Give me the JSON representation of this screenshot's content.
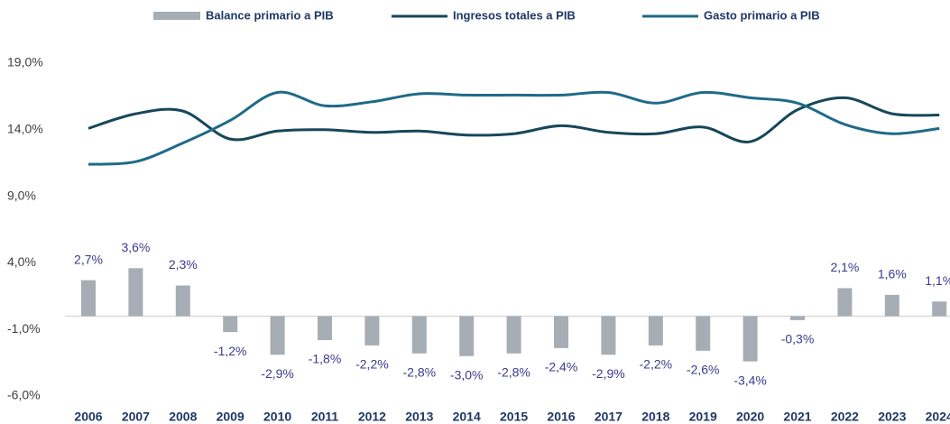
{
  "chart_data": {
    "type": "bar_line",
    "categories": [
      "2006",
      "2007",
      "2008",
      "2009",
      "2010",
      "2011",
      "2012",
      "2013",
      "2014",
      "2015",
      "2016",
      "2017",
      "2018",
      "2019",
      "2020",
      "2021",
      "2022",
      "2023",
      "2024"
    ],
    "series": [
      {
        "name": "Balance primario a PIB",
        "type": "bar",
        "color": "#a6adb4",
        "values": [
          2.7,
          3.6,
          2.3,
          -1.2,
          -2.9,
          -1.8,
          -2.2,
          -2.8,
          -3.0,
          -2.8,
          -2.4,
          -2.9,
          -2.2,
          -2.6,
          -3.4,
          -0.3,
          2.1,
          1.6,
          1.1
        ],
        "value_labels": [
          "2,7%",
          "3,6%",
          "2,3%",
          "-1,2%",
          "-2,9%",
          "-1,8%",
          "-2,2%",
          "-2,8%",
          "-3,0%",
          "-2,8%",
          "-2,4%",
          "-2,9%",
          "-2,2%",
          "-2,6%",
          "-3,4%",
          "-0,3%",
          "2,1%",
          "1,6%",
          "1,1%"
        ]
      },
      {
        "name": "Ingresos totales a PIB",
        "type": "line",
        "color": "#17475a",
        "values": [
          14.1,
          15.2,
          15.4,
          13.3,
          13.9,
          14.0,
          13.8,
          13.9,
          13.6,
          13.7,
          14.3,
          13.8,
          13.7,
          14.2,
          13.1,
          15.5,
          16.4,
          15.2,
          15.1
        ]
      },
      {
        "name": "Gasto primario a PIB",
        "type": "line",
        "color": "#1f6a88",
        "values": [
          11.4,
          11.6,
          13.0,
          14.7,
          16.8,
          15.8,
          16.1,
          16.7,
          16.6,
          16.6,
          16.6,
          16.8,
          16.0,
          16.8,
          16.4,
          16.0,
          14.4,
          13.7,
          14.1
        ]
      }
    ],
    "ylim": [
      -6,
      19
    ],
    "yticks": [
      {
        "value": -6,
        "label": "-6,0%"
      },
      {
        "value": -1,
        "label": "-1,0%"
      },
      {
        "value": 4,
        "label": "4,0%"
      },
      {
        "value": 9,
        "label": "9,0%"
      },
      {
        "value": 14,
        "label": "14,0%"
      },
      {
        "value": 19,
        "label": "19,0%"
      }
    ],
    "legend": "top"
  }
}
